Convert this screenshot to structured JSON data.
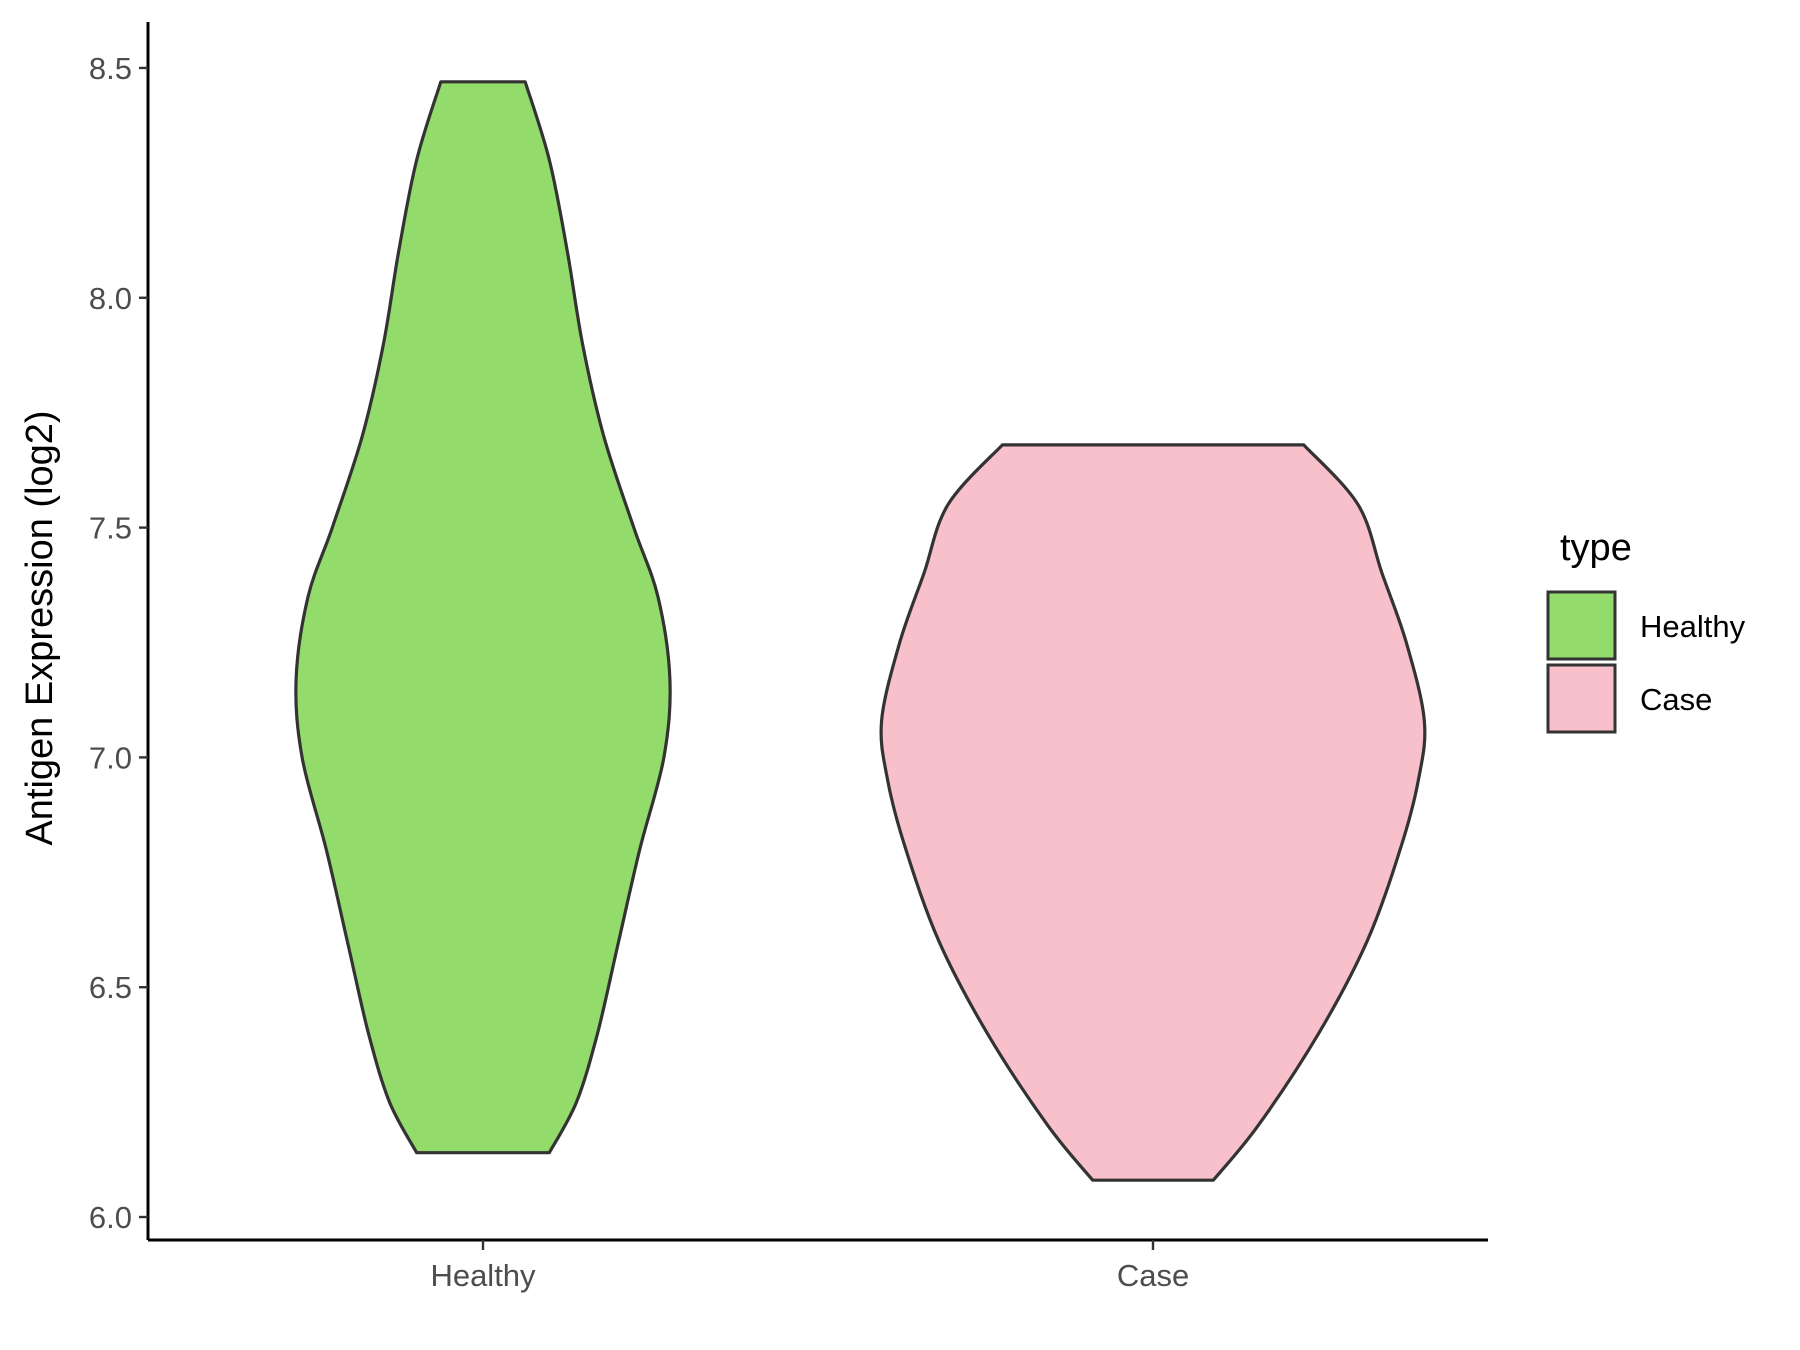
{
  "chart_data": {
    "type": "violin",
    "title": "",
    "xlabel": "",
    "ylabel": "Antigen Expression (log2)",
    "ylim": [
      5.95,
      8.6
    ],
    "yticks": [
      6.0,
      6.5,
      7.0,
      7.5,
      8.0,
      8.5
    ],
    "ytick_labels": [
      "6.0",
      "6.5",
      "7.0",
      "7.5",
      "8.0",
      "8.5"
    ],
    "categories": [
      "Healthy",
      "Case"
    ],
    "legend": {
      "title": "type",
      "placement": "right",
      "entries": [
        "Healthy",
        "Case"
      ]
    },
    "series": [
      {
        "name": "Healthy",
        "color": "#93dc6b",
        "min": 6.14,
        "max": 8.47,
        "profile": [
          {
            "y": 6.14,
            "w": 0.22
          },
          {
            "y": 6.25,
            "w": 0.31
          },
          {
            "y": 6.4,
            "w": 0.38
          },
          {
            "y": 6.6,
            "w": 0.45
          },
          {
            "y": 6.8,
            "w": 0.52
          },
          {
            "y": 7.0,
            "w": 0.6
          },
          {
            "y": 7.17,
            "w": 0.62
          },
          {
            "y": 7.35,
            "w": 0.58
          },
          {
            "y": 7.5,
            "w": 0.5
          },
          {
            "y": 7.7,
            "w": 0.4
          },
          {
            "y": 7.9,
            "w": 0.33
          },
          {
            "y": 8.1,
            "w": 0.28
          },
          {
            "y": 8.3,
            "w": 0.22
          },
          {
            "y": 8.47,
            "w": 0.14
          }
        ]
      },
      {
        "name": "Case",
        "color": "#f8c0cb",
        "min": 6.08,
        "max": 7.68,
        "profile": [
          {
            "y": 6.08,
            "w": 0.2
          },
          {
            "y": 6.2,
            "w": 0.35
          },
          {
            "y": 6.4,
            "w": 0.55
          },
          {
            "y": 6.6,
            "w": 0.71
          },
          {
            "y": 6.8,
            "w": 0.82
          },
          {
            "y": 6.95,
            "w": 0.88
          },
          {
            "y": 7.08,
            "w": 0.9
          },
          {
            "y": 7.25,
            "w": 0.84
          },
          {
            "y": 7.4,
            "w": 0.76
          },
          {
            "y": 7.55,
            "w": 0.68
          },
          {
            "y": 7.68,
            "w": 0.5
          }
        ]
      }
    ]
  }
}
